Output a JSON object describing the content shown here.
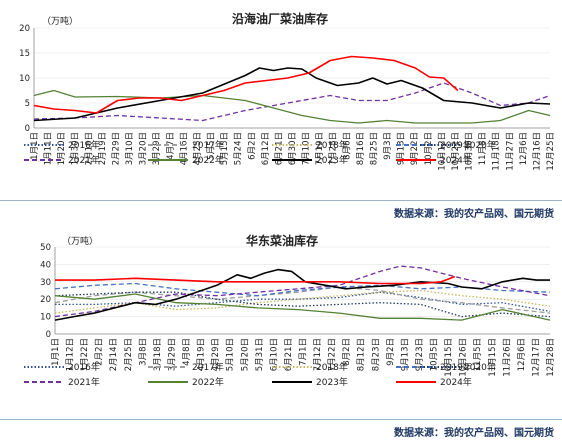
{
  "panels": [
    {
      "title": "沿海油厂菜油库存",
      "unit": "（万吨）",
      "source": "数据来源：我的农产品网、国元期货"
    },
    {
      "title": "华东菜油库存",
      "unit": "（万吨）",
      "source": "数据来源：我的农产品网、国元期货"
    }
  ],
  "colors": {
    "2016": "#2f5597",
    "2017": "#9e9e9e",
    "2018": "#c9b458",
    "2019": "#4472c4",
    "2020": "#1f3864",
    "2021": "#7030a0",
    "2022": "#548235",
    "2023": "#000000",
    "2024": "#ff0000"
  },
  "chart_data": [
    {
      "type": "line",
      "title": "沿海油厂菜油库存",
      "ylabel": "（万吨）",
      "ylim": [
        0,
        20
      ],
      "yticks": [
        0,
        5,
        10,
        15,
        20
      ],
      "x_domain_days": [
        1,
        365
      ],
      "xticks": [
        "1月1日",
        "1月11日",
        "1月20日",
        "1月30日",
        "2月10日",
        "2月19日",
        "2月29日",
        "3月10日",
        "3月20日",
        "3月29日",
        "4月7日",
        "4月16日",
        "4月25日",
        "5月5日",
        "5月15日",
        "5月24日",
        "6月2日",
        "6月12日",
        "6月21日",
        "6月30日",
        "7月10日",
        "7月19日",
        "7月28日",
        "8月6日",
        "8月16日",
        "8月25日",
        "9月3日",
        "9月13日",
        "9月22日",
        "10月2日",
        "10月12日",
        "10月21日",
        "10月30日",
        "11月8日",
        "11月18日",
        "11月27日",
        "12月6日",
        "12月16日",
        "12月25日"
      ],
      "series": [
        {
          "name": "2021年",
          "style": "dash",
          "x": [
            1,
            30,
            60,
            90,
            120,
            150,
            170,
            190,
            210,
            230,
            250,
            270,
            290,
            310,
            330,
            350,
            365
          ],
          "values": [
            1.8,
            2,
            2.5,
            2,
            1.5,
            3.5,
            4.5,
            5.5,
            6.5,
            5.5,
            5.5,
            7,
            9,
            7,
            4.5,
            5,
            6.5
          ]
        },
        {
          "name": "2022年",
          "style": "solid",
          "x": [
            1,
            15,
            30,
            60,
            90,
            120,
            150,
            170,
            190,
            210,
            230,
            250,
            270,
            290,
            310,
            330,
            350,
            365
          ],
          "values": [
            6.5,
            7.5,
            6.2,
            6.3,
            6,
            6.5,
            5.5,
            4,
            2.5,
            1.5,
            1,
            1.5,
            1,
            1,
            1,
            1.5,
            3.5,
            2.5
          ]
        },
        {
          "name": "2023年",
          "style": "solid",
          "x": [
            1,
            30,
            60,
            90,
            120,
            150,
            160,
            170,
            180,
            190,
            200,
            215,
            230,
            240,
            250,
            260,
            275,
            290,
            310,
            330,
            350,
            365
          ],
          "values": [
            1.5,
            2,
            4,
            5.5,
            7,
            10.5,
            12,
            11.5,
            12,
            11.8,
            10,
            8.5,
            9,
            10,
            8.8,
            9.5,
            8,
            5.5,
            5,
            4,
            5,
            4.8
          ]
        },
        {
          "name": "2024年",
          "style": "solid",
          "x": [
            1,
            15,
            30,
            45,
            60,
            75,
            90,
            105,
            120,
            135,
            150,
            165,
            180,
            195,
            210,
            225,
            240,
            255,
            270,
            280,
            290,
            300
          ],
          "values": [
            4.5,
            3.8,
            3.5,
            3,
            5.5,
            6,
            6,
            5.5,
            6.5,
            7.5,
            9,
            9.5,
            10,
            11,
            13.5,
            14.3,
            14,
            13.5,
            12,
            10.2,
            10,
            7.5
          ]
        }
      ],
      "legend": {
        "placement": "bottom",
        "entries": [
          "2016年",
          "2017年",
          "2018年",
          "2019年",
          "2020年",
          "2021年",
          "2022年",
          "2023年",
          "2024年"
        ]
      }
    },
    {
      "type": "line",
      "title": "华东菜油库存",
      "ylabel": "（万吨）",
      "ylim": [
        0,
        50
      ],
      "yticks": [
        0,
        10,
        20,
        30,
        40,
        50
      ],
      "x_domain_days": [
        1,
        365
      ],
      "xticks": [
        "1月1日",
        "1月12日",
        "1月22日",
        "2月2日",
        "2月14日",
        "2月25日",
        "3月8日",
        "3月18日",
        "3月29日",
        "4月8日",
        "4月19日",
        "4月29日",
        "5月10日",
        "5月20日",
        "5月31日",
        "6月10日",
        "6月21日",
        "7月1日",
        "7月12日",
        "7月22日",
        "8月2日",
        "8月12日",
        "8月23日",
        "9月2日",
        "9月13日",
        "9月23日",
        "10月5日",
        "10月15日",
        "10月26日",
        "11月5日",
        "11月15日",
        "11月26日",
        "12月6日",
        "12月17日",
        "12月28日"
      ],
      "series": [
        {
          "name": "2016年",
          "style": "dot",
          "x": [
            1,
            30,
            60,
            90,
            120,
            150,
            180,
            210,
            240,
            270,
            300,
            330,
            365
          ],
          "values": [
            17,
            17,
            18,
            16,
            18,
            20,
            20,
            21,
            24,
            21,
            17,
            18,
            13
          ]
        },
        {
          "name": "2017年",
          "style": "dash",
          "x": [
            1,
            30,
            60,
            90,
            120,
            150,
            180,
            210,
            240,
            270,
            300,
            330,
            365
          ],
          "values": [
            18,
            22,
            24,
            22,
            20,
            22,
            24,
            27,
            25,
            20,
            18,
            15,
            12
          ]
        },
        {
          "name": "2018年",
          "style": "dot",
          "x": [
            1,
            30,
            60,
            90,
            120,
            150,
            180,
            210,
            240,
            270,
            300,
            330,
            365
          ],
          "values": [
            12,
            15,
            18,
            14,
            15,
            18,
            20,
            22,
            24,
            25,
            22,
            20,
            16
          ]
        },
        {
          "name": "2019年",
          "style": "dash",
          "x": [
            1,
            30,
            60,
            90,
            120,
            150,
            180,
            210,
            240,
            270,
            300,
            330,
            365
          ],
          "values": [
            26,
            28,
            29,
            26,
            24,
            22,
            25,
            27,
            28,
            26,
            27,
            25,
            24
          ]
        },
        {
          "name": "2020年",
          "style": "dot",
          "x": [
            1,
            30,
            60,
            90,
            120,
            150,
            180,
            210,
            240,
            270,
            300,
            330,
            365
          ],
          "values": [
            22,
            23,
            24,
            24,
            20,
            17,
            16,
            17,
            18,
            17,
            10,
            12,
            10
          ]
        },
        {
          "name": "2021年",
          "style": "dash",
          "x": [
            1,
            30,
            60,
            90,
            120,
            150,
            180,
            210,
            240,
            255,
            270,
            285,
            300,
            330,
            365
          ],
          "values": [
            10,
            13,
            18,
            23,
            22,
            24,
            26,
            28,
            36,
            39,
            38,
            35,
            32,
            27,
            22
          ]
        },
        {
          "name": "2022年",
          "style": "solid",
          "x": [
            1,
            30,
            60,
            90,
            120,
            150,
            180,
            210,
            240,
            270,
            300,
            330,
            365
          ],
          "values": [
            22,
            20,
            23,
            18,
            17,
            15,
            14,
            12,
            9,
            9,
            8,
            14,
            8
          ]
        },
        {
          "name": "2023年",
          "style": "solid",
          "x": [
            1,
            15,
            30,
            45,
            60,
            75,
            90,
            105,
            120,
            135,
            145,
            155,
            165,
            175,
            185,
            200,
            215,
            230,
            250,
            270,
            290,
            300,
            315,
            330,
            345,
            355,
            365
          ],
          "values": [
            8,
            10,
            12,
            15,
            18,
            17,
            20,
            24,
            28,
            34,
            32,
            35,
            37,
            36,
            30,
            28,
            26,
            27,
            28,
            30,
            29,
            27,
            26,
            30,
            32,
            31,
            31
          ]
        },
        {
          "name": "2024年",
          "style": "solid",
          "x": [
            1,
            30,
            60,
            90,
            120,
            150,
            180,
            210,
            240,
            270,
            285,
            295
          ],
          "values": [
            31,
            31,
            32,
            31,
            30,
            30,
            30,
            30,
            29,
            29,
            30,
            33
          ]
        }
      ],
      "legend": {
        "placement": "bottom",
        "entries": [
          "2016年",
          "2017年",
          "2018年",
          "2019年",
          "2020年",
          "2021年",
          "2022年",
          "2023年",
          "2024年"
        ]
      }
    }
  ]
}
